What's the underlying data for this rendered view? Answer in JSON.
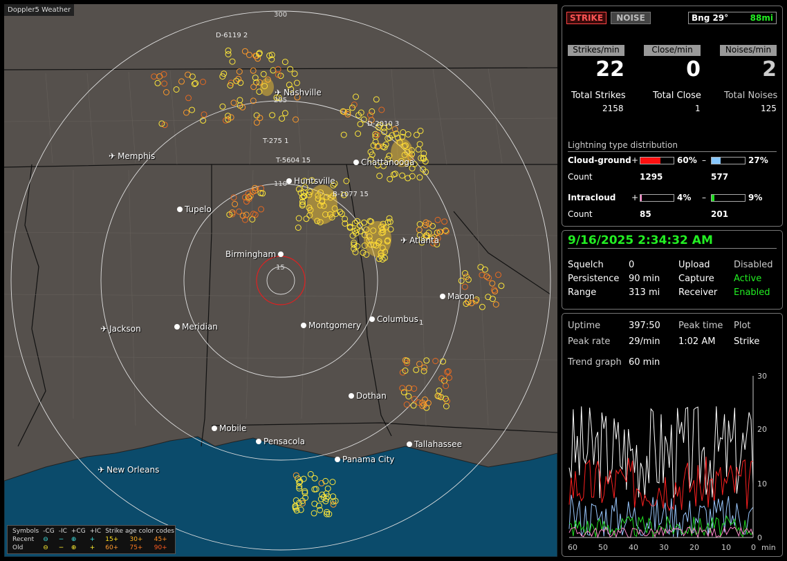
{
  "app_title": "Doppler5 Weather",
  "map": {
    "ring_labels": [
      "300",
      "205",
      "110",
      "15"
    ],
    "cities": [
      {
        "name": "Nashville",
        "kind": "airport"
      },
      {
        "name": "Memphis",
        "kind": "airport"
      },
      {
        "name": "Chattanooga",
        "kind": "city"
      },
      {
        "name": "Huntsville",
        "kind": "city"
      },
      {
        "name": "Tupelo",
        "kind": "city"
      },
      {
        "name": "Atlanta",
        "kind": "airport"
      },
      {
        "name": "Birmingham",
        "kind": "city"
      },
      {
        "name": "Macon",
        "kind": "city"
      },
      {
        "name": "Jackson",
        "kind": "airport"
      },
      {
        "name": "Meridian",
        "kind": "city"
      },
      {
        "name": "Montgomery",
        "kind": "city"
      },
      {
        "name": "Columbus",
        "kind": "city"
      },
      {
        "name": "Dothan",
        "kind": "city"
      },
      {
        "name": "Mobile",
        "kind": "city"
      },
      {
        "name": "Pensacola",
        "kind": "city"
      },
      {
        "name": "Tallahassee",
        "kind": "city"
      },
      {
        "name": "Panama City",
        "kind": "city"
      },
      {
        "name": "New Orleans",
        "kind": "airport"
      }
    ],
    "storm_tags": [
      "D-6119 2",
      "D-2010 3",
      "T-275 1",
      "T-5604 15",
      "B-1077 15",
      "1"
    ],
    "legend": {
      "header": [
        "Symbols",
        "-CG",
        "-IC",
        "+CG",
        "+IC",
        "Strike age color codes"
      ],
      "recent": {
        "label": "Recent",
        "ages": [
          "15+",
          "30+",
          "45+"
        ]
      },
      "old": {
        "label": "Old",
        "ages": [
          "60+",
          "75+",
          "90+"
        ]
      }
    },
    "colors": {
      "land": "#55504c",
      "water": "#0b4b6b",
      "range_rings": "#e0e0e0",
      "center_ring": "#e02020"
    }
  },
  "panel_strikes": {
    "mode_strike": "STRIKE",
    "mode_noise": "NOISE",
    "bearing": "Bng 29°",
    "distance": "88mi",
    "rate_headers": [
      "Strikes/min",
      "Close/min",
      "Noises/min"
    ],
    "rates": [
      "22",
      "0",
      "2"
    ],
    "totals_labels": [
      "Total Strikes",
      "Total Close",
      "Total Noises"
    ],
    "totals": [
      "2158",
      "1",
      "125"
    ],
    "distribution_title": "Lightning type distribution",
    "cloud_ground": {
      "label": "Cloud-ground",
      "pos_sign": "+",
      "pos_pct": "60%",
      "pos_frac": 0.6,
      "neg_sign": "–",
      "neg_pct": "27%",
      "neg_frac": 0.27
    },
    "cg_count": {
      "label": "Count",
      "pos": "1295",
      "neg": "577"
    },
    "intracloud": {
      "label": "Intracloud",
      "pos_sign": "+",
      "pos_pct": "4%",
      "pos_frac": 0.04,
      "neg_sign": "–",
      "neg_pct": "9%",
      "neg_frac": 0.09
    },
    "ic_count": {
      "label": "Count",
      "pos": "85",
      "neg": "201"
    },
    "colors": {
      "pos_cg": "#ff1010",
      "neg_cg": "#88c8ff",
      "pos_ic": "#ff88cc",
      "neg_ic": "#22dd22"
    }
  },
  "panel_status": {
    "datetime": "9/16/2025 2:34:32 AM",
    "rows": [
      {
        "k1": "Squelch",
        "v1": "0",
        "k2": "Upload",
        "v2": "Disabled"
      },
      {
        "k1": "Persistence",
        "v1": "90 min",
        "k2": "Capture",
        "v2": "Active"
      },
      {
        "k1": "Range",
        "v1": "313 mi",
        "k2": "Receiver",
        "v2": "Enabled"
      }
    ]
  },
  "panel_trend": {
    "uptime_label": "Uptime",
    "uptime": "397:50",
    "peak_time_label": "Peak time",
    "plot_label": "Plot",
    "peak_rate_label": "Peak rate",
    "peak_rate": "29/min",
    "peak_time": "1:02 AM",
    "plot": "Strike",
    "trend_label": "Trend graph",
    "trend_span": "60 min",
    "y_ticks": [
      "30",
      "20",
      "10",
      "0"
    ],
    "x_ticks": [
      "60",
      "50",
      "40",
      "30",
      "20",
      "10",
      "0"
    ],
    "x_unit": "min"
  }
}
